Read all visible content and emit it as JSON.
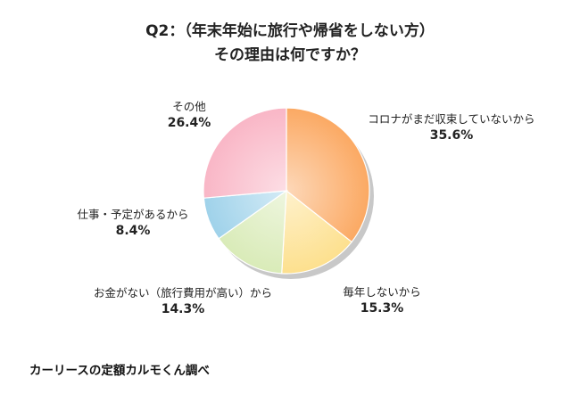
{
  "title_lines": [
    "Q2：（年末年始に旅行や帰省をしない方）",
    "その理由は何ですか？"
  ],
  "source": "カーリースの定額カルモくん調べ",
  "chart_data": {
    "type": "pie",
    "title": "Q2：（年末年始に旅行や帰省をしない方） その理由は何ですか？",
    "slices": [
      {
        "label": "コロナがまだ収束していないから",
        "value": 35.6,
        "display": "35.6%",
        "color": "#fba963"
      },
      {
        "label": "毎年しないから",
        "value": 15.3,
        "display": "15.3%",
        "color": "#fde08e"
      },
      {
        "label": "お金がない（旅行費用が高い）から",
        "value": 14.3,
        "display": "14.3%",
        "color": "#d9ebb8"
      },
      {
        "label": "仕事・予定があるから",
        "value": 8.4,
        "display": "8.4%",
        "color": "#9fd2ea"
      },
      {
        "label": "その他",
        "value": 26.4,
        "display": "26.4%",
        "color": "#f9b6c6"
      }
    ],
    "start_angle": "12 o'clock",
    "direction": "clockwise"
  }
}
